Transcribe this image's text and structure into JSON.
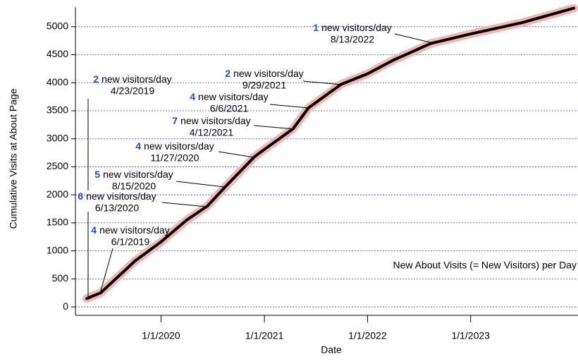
{
  "chart_data": {
    "type": "line",
    "x_label": "Date",
    "y_label": "Cumulative Visits at About Page",
    "legend_text": "New About Visits (= New Visitors) per Day",
    "x": [
      "2019-04-13",
      "2019-06-01",
      "2019-10-01",
      "2020-01-01",
      "2020-04-01",
      "2020-06-13",
      "2020-08-15",
      "2020-11-27",
      "2021-01-01",
      "2021-04-12",
      "2021-06-06",
      "2021-09-29",
      "2022-01-01",
      "2022-04-01",
      "2022-08-13",
      "2023-01-01",
      "2023-07-01",
      "2024-01-01"
    ],
    "series": [
      {
        "name": "Cumulative visits",
        "color": "#000000",
        "halo_color": "#f4b6b6",
        "values": [
          150,
          250,
          820,
          1160,
          1550,
          1800,
          2140,
          2680,
          2810,
          3175,
          3550,
          3970,
          4160,
          4400,
          4700,
          4870,
          5070,
          5330
        ]
      }
    ],
    "xlim": [
      "2019-03-04",
      "2024-01-16"
    ],
    "xticks": [
      {
        "value": "2020-01-01",
        "label": "1/1/2020"
      },
      {
        "value": "2021-01-01",
        "label": "1/1/2021"
      },
      {
        "value": "2022-01-01",
        "label": "1/1/2022"
      },
      {
        "value": "2023-01-01",
        "label": "1/1/2023"
      }
    ],
    "ylim": [
      -150,
      5350
    ],
    "yticks": [
      0,
      500,
      1000,
      1500,
      2000,
      2500,
      3000,
      3500,
      4000,
      4500,
      5000
    ],
    "grid": true,
    "grid_color": "#3a3ad0",
    "annotations": [
      {
        "rate": 1,
        "text": "new visitors/day",
        "date": "8/13/2022"
      },
      {
        "rate": 2,
        "text": "new visitors/day",
        "date": "9/29/2021"
      },
      {
        "rate": 4,
        "text": "new visitors/day",
        "date": "6/6/2021"
      },
      {
        "rate": 7,
        "text": "new visitors/day",
        "date": "4/12/2021"
      },
      {
        "rate": 4,
        "text": "new visitors/day",
        "date": "11/27/2020"
      },
      {
        "rate": 5,
        "text": "new visitors/day",
        "date": "8/15/2020"
      },
      {
        "rate": 6,
        "text": "new visitors/day",
        "date": "6/13/2020"
      },
      {
        "rate": 2,
        "text": "new visitors/day",
        "date": "4/23/2019"
      },
      {
        "rate": 4,
        "text": "new visitors/day",
        "date": "6/1/2019"
      }
    ]
  }
}
